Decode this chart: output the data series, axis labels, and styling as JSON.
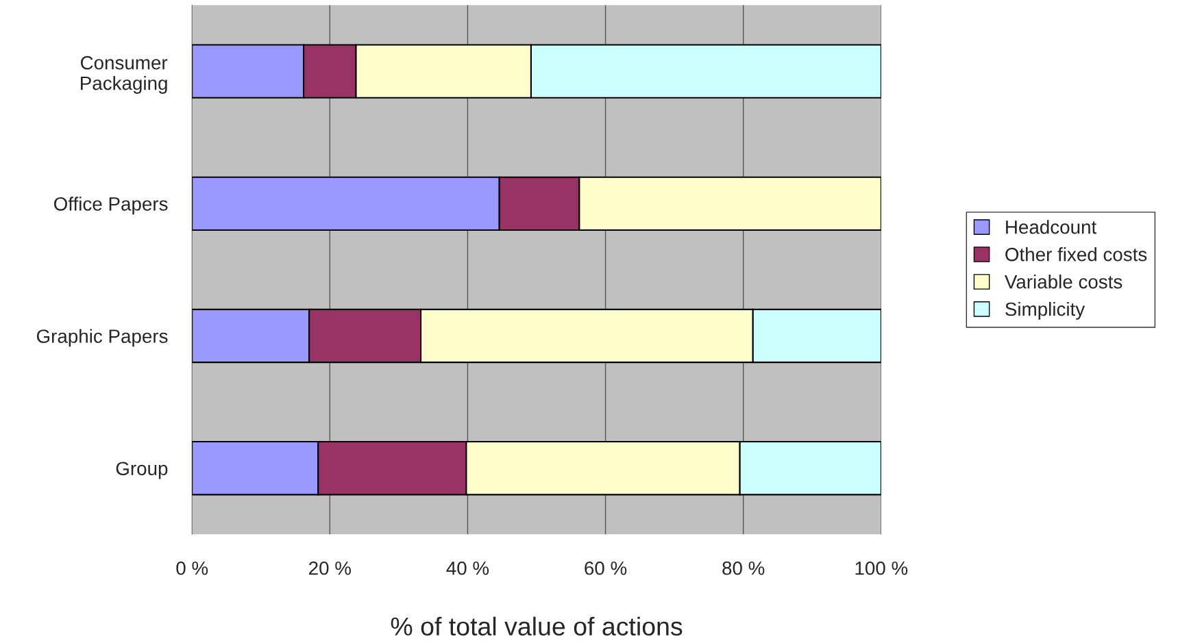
{
  "chart_data": {
    "type": "bar",
    "orientation": "horizontal",
    "stacked": true,
    "xlabel": "% of total value of actions",
    "categories": [
      "Consumer\nPackaging",
      "Office Papers",
      "Graphic Papers",
      "Group"
    ],
    "series": [
      {
        "name": "Headcount",
        "color": "#9999ff",
        "values": [
          16.2,
          44.6,
          17.0,
          18.3
        ]
      },
      {
        "name": "Other fixed costs",
        "color": "#993366",
        "values": [
          7.6,
          11.6,
          16.2,
          21.5
        ]
      },
      {
        "name": "Variable costs",
        "color": "#ffffcc",
        "values": [
          25.4,
          43.8,
          48.2,
          39.7
        ]
      },
      {
        "name": "Simplicity",
        "color": "#ccffff",
        "values": [
          50.8,
          null,
          18.6,
          20.5
        ]
      }
    ],
    "xlim": [
      0,
      100
    ],
    "xticks": [
      {
        "value": 0,
        "label": "0 %"
      },
      {
        "value": 20,
        "label": "20 %"
      },
      {
        "value": 40,
        "label": "40 %"
      },
      {
        "value": 60,
        "label": "60 %"
      },
      {
        "value": 80,
        "label": "80 %"
      },
      {
        "value": 100,
        "label": "100 %"
      }
    ],
    "grid": "x",
    "legend": "right"
  }
}
